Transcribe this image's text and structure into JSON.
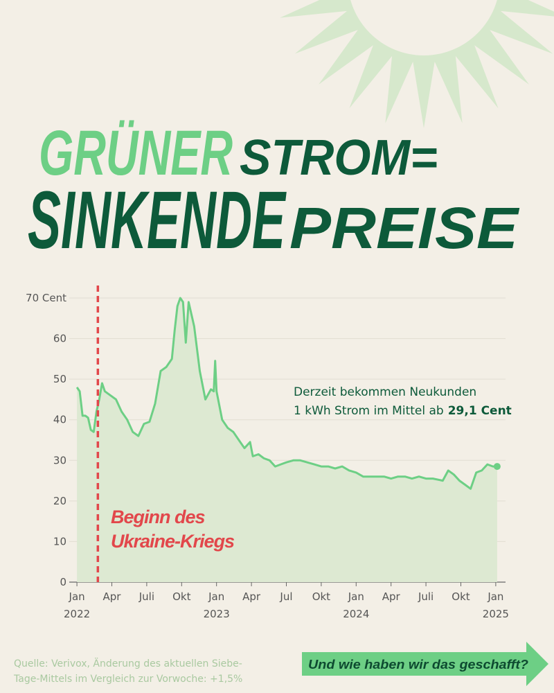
{
  "chart_data": {
    "type": "area",
    "title_words": [
      {
        "text": "GRÜNER",
        "color": "#6dcf85"
      },
      {
        "text": "STROM=",
        "color": "#0d5a3a"
      },
      {
        "text": "SINKENDE",
        "color": "#0d5a3a"
      },
      {
        "text": "PREISE",
        "color": "#0d5a3a"
      }
    ],
    "x": [
      2022.0,
      2022.02,
      2022.04,
      2022.06,
      2022.08,
      2022.1,
      2022.12,
      2022.14,
      2022.16,
      2022.18,
      2022.2,
      2022.24,
      2022.28,
      2022.32,
      2022.36,
      2022.4,
      2022.44,
      2022.48,
      2022.52,
      2022.56,
      2022.6,
      2022.64,
      2022.68,
      2022.7,
      2022.72,
      2022.74,
      2022.76,
      2022.78,
      2022.8,
      2022.84,
      2022.88,
      2022.92,
      2022.96,
      2022.98,
      2022.99,
      2023.0,
      2023.04,
      2023.08,
      2023.12,
      2023.16,
      2023.2,
      2023.24,
      2023.26,
      2023.3,
      2023.34,
      2023.38,
      2023.42,
      2023.46,
      2023.5,
      2023.55,
      2023.6,
      2023.65,
      2023.7,
      2023.75,
      2023.8,
      2023.85,
      2023.9,
      2023.95,
      2024.0,
      2024.05,
      2024.1,
      2024.2,
      2024.25,
      2024.3,
      2024.35,
      2024.4,
      2024.45,
      2024.5,
      2024.55,
      2024.62,
      2024.66,
      2024.7,
      2024.74,
      2024.78,
      2024.82,
      2024.86,
      2024.9,
      2024.94,
      2024.98,
      2025.01
    ],
    "values": [
      48,
      47,
      41,
      41,
      40.5,
      37.5,
      37,
      42,
      45,
      49,
      47,
      46,
      45,
      42,
      40,
      37,
      36,
      39,
      39.5,
      44,
      52,
      53,
      55,
      62,
      68,
      70,
      69,
      59,
      69,
      63,
      52,
      45,
      47.5,
      47,
      54.5,
      47,
      40,
      38,
      37,
      35,
      33,
      34.5,
      31,
      31.5,
      30.5,
      30,
      28.5,
      29,
      29.5,
      30,
      30,
      29.5,
      29,
      28.5,
      28.5,
      28,
      28.5,
      27.5,
      27,
      26,
      26,
      26,
      25.5,
      26,
      26,
      25.5,
      26,
      25.5,
      25.5,
      25,
      27.5,
      26.5,
      25,
      24,
      23,
      27,
      27.5,
      29,
      28.5,
      28.5
    ],
    "color": "#6dcf85",
    "area_color": "#dde9d2",
    "xlim": [
      2021.945,
      2025.07
    ],
    "xticks": [
      {
        "value": 2022,
        "label": "Jan"
      },
      {
        "value": 2022.25,
        "label": "Apr"
      },
      {
        "value": 2022.5,
        "label": "Juli"
      },
      {
        "value": 2022.75,
        "label": "Okt"
      },
      {
        "value": 2023,
        "label": "Jan"
      },
      {
        "value": 2023.25,
        "label": "Apr"
      },
      {
        "value": 2023.5,
        "label": "Jul"
      },
      {
        "value": 2023.75,
        "label": "Okt"
      },
      {
        "value": 2024,
        "label": "Jan"
      },
      {
        "value": 2024.25,
        "label": "Apr"
      },
      {
        "value": 2024.5,
        "label": "Juli"
      },
      {
        "value": 2024.75,
        "label": "Okt"
      },
      {
        "value": 2025,
        "label": "Jan"
      }
    ],
    "year_labels": [
      2022,
      2023,
      2024,
      2025
    ],
    "ylim": [
      0,
      70
    ],
    "yticks": [
      0,
      10,
      20,
      30,
      40,
      50,
      60,
      {
        "value": 70,
        "label": "70 Cent"
      }
    ],
    "grid": true,
    "marker": {
      "x": 2022.15,
      "color": "#e2474b",
      "lines": [
        "Beginn des",
        "Ukraine-Kriegs"
      ]
    },
    "annotation": {
      "lines": [
        "Derzeit bekommen Neukunden",
        "1 kWh Strom im Mittel ab"
      ],
      "bold": "29,1 Cent"
    },
    "source": [
      "Quelle: Verivox, Änderung des aktuellen Siebe-",
      "Tage-Mittels im Vergleich zur Vorwoche: +1,5%"
    ],
    "button": "Und wie haben wir das geschafft?"
  }
}
